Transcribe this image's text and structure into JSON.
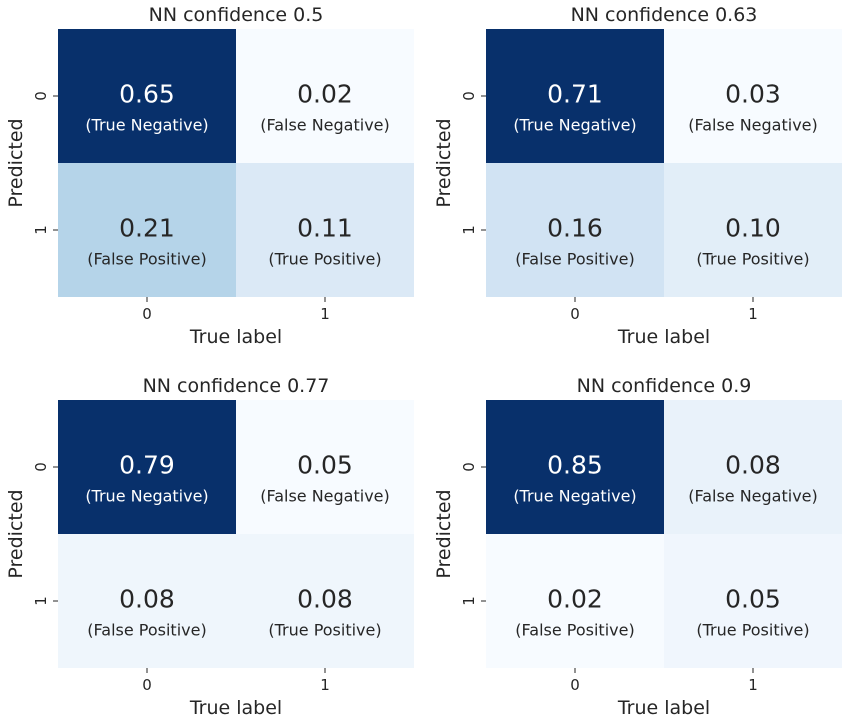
{
  "chart_data": [
    {
      "type": "heatmap",
      "title": "NN confidence 0.5",
      "xlabel": "True label",
      "ylabel": "Predicted",
      "x_ticks": [
        "0",
        "1"
      ],
      "y_ticks": [
        "0",
        "1"
      ],
      "values": [
        [
          0.65,
          0.02
        ],
        [
          0.21,
          0.11
        ]
      ],
      "display": [
        [
          "0.65",
          "0.02"
        ],
        [
          "0.21",
          "0.11"
        ]
      ],
      "cell_labels": [
        [
          "(True Negative)",
          "(False Negative)"
        ],
        [
          "(False Positive)",
          "(True Positive)"
        ]
      ],
      "colormap": "Blues",
      "colorbar": false
    },
    {
      "type": "heatmap",
      "title": "NN confidence 0.63",
      "xlabel": "True label",
      "ylabel": "Predicted",
      "x_ticks": [
        "0",
        "1"
      ],
      "y_ticks": [
        "0",
        "1"
      ],
      "values": [
        [
          0.71,
          0.03
        ],
        [
          0.16,
          0.1
        ]
      ],
      "display": [
        [
          "0.71",
          "0.03"
        ],
        [
          "0.16",
          "0.10"
        ]
      ],
      "cell_labels": [
        [
          "(True Negative)",
          "(False Negative)"
        ],
        [
          "(False Positive)",
          "(True Positive)"
        ]
      ],
      "colormap": "Blues",
      "colorbar": false
    },
    {
      "type": "heatmap",
      "title": "NN confidence 0.77",
      "xlabel": "True label",
      "ylabel": "Predicted",
      "x_ticks": [
        "0",
        "1"
      ],
      "y_ticks": [
        "0",
        "1"
      ],
      "values": [
        [
          0.79,
          0.05
        ],
        [
          0.08,
          0.08
        ]
      ],
      "display": [
        [
          "0.79",
          "0.05"
        ],
        [
          "0.08",
          "0.08"
        ]
      ],
      "cell_labels": [
        [
          "(True Negative)",
          "(False Negative)"
        ],
        [
          "(False Positive)",
          "(True Positive)"
        ]
      ],
      "colormap": "Blues",
      "colorbar": false
    },
    {
      "type": "heatmap",
      "title": "NN confidence 0.9",
      "xlabel": "True label",
      "ylabel": "Predicted",
      "x_ticks": [
        "0",
        "1"
      ],
      "y_ticks": [
        "0",
        "1"
      ],
      "values": [
        [
          0.85,
          0.08
        ],
        [
          0.02,
          0.05
        ]
      ],
      "display": [
        [
          "0.85",
          "0.08"
        ],
        [
          "0.02",
          "0.05"
        ]
      ],
      "cell_labels": [
        [
          "(True Negative)",
          "(False Negative)"
        ],
        [
          "(False Positive)",
          "(True Positive)"
        ]
      ],
      "colormap": "Blues",
      "colorbar": false
    }
  ]
}
